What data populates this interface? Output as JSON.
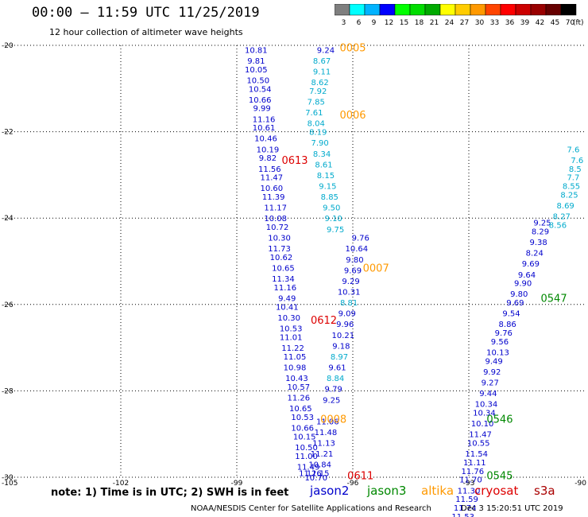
{
  "header": {
    "title": "00:00 – 11:59 UTC 11/25/2019",
    "subtitle": "12 hour collection of altimeter wave heights"
  },
  "colorbar": {
    "unit": "(ft)",
    "ticks": [
      "3",
      "6",
      "9",
      "12",
      "15",
      "18",
      "21",
      "24",
      "27",
      "30",
      "33",
      "36",
      "39",
      "42",
      "45",
      "70"
    ],
    "colors": [
      "#7f7f7f",
      "#00ffff",
      "#00b3ff",
      "#0000ff",
      "#00ff00",
      "#00dd00",
      "#00aa00",
      "#ffff00",
      "#ffcc00",
      "#ff9900",
      "#ff4400",
      "#ff0000",
      "#cc0000",
      "#990000",
      "#660000",
      "#000000"
    ]
  },
  "footer": {
    "note": "note: 1) Time is in UTC; 2) SWH is in feet",
    "satellites": [
      {
        "name": "jason2",
        "color": "#0000cc"
      },
      {
        "name": "jason3",
        "color": "#008800"
      },
      {
        "name": "altika",
        "color": "#ff9900"
      },
      {
        "name": "cryosat",
        "color": "#dd0000"
      },
      {
        "name": "s3a",
        "color": "#aa0000"
      }
    ],
    "credit": "NOAA/NESDIS Center for Satellite Applications and Research",
    "timestamp": "Dec 3 15:20:51 UTC 2019"
  },
  "chart_data": {
    "type": "scatter",
    "xlim": [
      -105,
      -90
    ],
    "ylim": [
      -30,
      -20
    ],
    "x_ticks": [
      "-105",
      "-102",
      "-99",
      "-96",
      "-93",
      "-90"
    ],
    "y_ticks": [
      "-20",
      "-22",
      "-24",
      "-26",
      "-28",
      "-30"
    ],
    "grid": true,
    "series": [
      {
        "name": "jason2",
        "color": "#0000cc",
        "points": [
          {
            "lon": -98.5,
            "lat": -20.1,
            "v": "10.81"
          },
          {
            "lon": -98.5,
            "lat": -20.35,
            "v": "9.81"
          },
          {
            "lon": -98.5,
            "lat": -20.55,
            "v": "10.05"
          },
          {
            "lon": -98.45,
            "lat": -20.8,
            "v": "10.50"
          },
          {
            "lon": -98.4,
            "lat": -21.0,
            "v": "10.54"
          },
          {
            "lon": -98.4,
            "lat": -21.25,
            "v": "10.66"
          },
          {
            "lon": -98.35,
            "lat": -21.45,
            "v": "9.99"
          },
          {
            "lon": -98.3,
            "lat": -21.7,
            "v": "11.16"
          },
          {
            "lon": -98.3,
            "lat": -21.9,
            "v": "10.61"
          },
          {
            "lon": -98.25,
            "lat": -22.15,
            "v": "10.46"
          },
          {
            "lon": -98.2,
            "lat": -22.4,
            "v": "10.19"
          },
          {
            "lon": -98.2,
            "lat": -22.6,
            "v": "9.82"
          },
          {
            "lon": -98.15,
            "lat": -22.85,
            "v": "11.56"
          },
          {
            "lon": -98.1,
            "lat": -23.05,
            "v": "11.47"
          },
          {
            "lon": -98.1,
            "lat": -23.3,
            "v": "10.60"
          },
          {
            "lon": -98.05,
            "lat": -23.5,
            "v": "11.39"
          },
          {
            "lon": -98.0,
            "lat": -23.75,
            "v": "11.17"
          },
          {
            "lon": -98.0,
            "lat": -24.0,
            "v": "10.08"
          },
          {
            "lon": -97.95,
            "lat": -24.2,
            "v": "10.72"
          },
          {
            "lon": -97.9,
            "lat": -24.45,
            "v": "10.30"
          },
          {
            "lon": -97.9,
            "lat": -24.7,
            "v": "11.73"
          },
          {
            "lon": -97.85,
            "lat": -24.9,
            "v": "10.62"
          },
          {
            "lon": -97.8,
            "lat": -25.15,
            "v": "10.65"
          },
          {
            "lon": -97.8,
            "lat": -25.4,
            "v": "11.34"
          },
          {
            "lon": -97.75,
            "lat": -25.6,
            "v": "11.16"
          },
          {
            "lon": -97.7,
            "lat": -25.85,
            "v": "9.49"
          },
          {
            "lon": -97.7,
            "lat": -26.05,
            "v": "10.41"
          },
          {
            "lon": -97.65,
            "lat": -26.3,
            "v": "10.30"
          },
          {
            "lon": -97.6,
            "lat": -26.55,
            "v": "10.53"
          },
          {
            "lon": -97.6,
            "lat": -26.75,
            "v": "11.01"
          },
          {
            "lon": -97.55,
            "lat": -27.0,
            "v": "11.22"
          },
          {
            "lon": -97.5,
            "lat": -27.2,
            "v": "11.05"
          },
          {
            "lon": -97.5,
            "lat": -27.45,
            "v": "10.98"
          },
          {
            "lon": -97.45,
            "lat": -27.7,
            "v": "10.43"
          },
          {
            "lon": -97.4,
            "lat": -27.9,
            "v": "10.57"
          },
          {
            "lon": -97.4,
            "lat": -28.15,
            "v": "11.26"
          },
          {
            "lon": -97.35,
            "lat": -28.4,
            "v": "10.65"
          },
          {
            "lon": -97.3,
            "lat": -28.6,
            "v": "10.53"
          },
          {
            "lon": -97.3,
            "lat": -28.85,
            "v": "10.66"
          },
          {
            "lon": -97.25,
            "lat": -29.05,
            "v": "10.15"
          },
          {
            "lon": -97.2,
            "lat": -29.3,
            "v": "10.50"
          },
          {
            "lon": -97.2,
            "lat": -29.5,
            "v": "11.00"
          },
          {
            "lon": -97.15,
            "lat": -29.75,
            "v": "11.49"
          },
          {
            "lon": -97.1,
            "lat": -29.9,
            "v": "11.26"
          },
          {
            "lon": -96.7,
            "lat": -20.1,
            "v": "9.24"
          },
          {
            "lon": -95.8,
            "lat": -24.45,
            "v": "9.76"
          },
          {
            "lon": -95.9,
            "lat": -24.7,
            "v": "10.64"
          },
          {
            "lon": -95.95,
            "lat": -24.95,
            "v": "9.80"
          },
          {
            "lon": -96.0,
            "lat": -25.2,
            "v": "9.69"
          },
          {
            "lon": -96.05,
            "lat": -25.45,
            "v": "9.29"
          },
          {
            "lon": -96.1,
            "lat": -25.7,
            "v": "10.31"
          },
          {
            "lon": -96.15,
            "lat": -26.2,
            "v": "9.09"
          },
          {
            "lon": -96.2,
            "lat": -26.45,
            "v": "9.96"
          },
          {
            "lon": -96.25,
            "lat": -26.7,
            "v": "10.21"
          },
          {
            "lon": -96.3,
            "lat": -26.95,
            "v": "9.18"
          },
          {
            "lon": -96.4,
            "lat": -27.45,
            "v": "9.61"
          },
          {
            "lon": -96.5,
            "lat": -27.95,
            "v": "9.79"
          },
          {
            "lon": -96.55,
            "lat": -28.2,
            "v": "9.25"
          },
          {
            "lon": -96.65,
            "lat": -28.7,
            "v": "11.06"
          },
          {
            "lon": -96.7,
            "lat": -28.95,
            "v": "11.48"
          },
          {
            "lon": -96.75,
            "lat": -29.2,
            "v": "11.13"
          },
          {
            "lon": -96.8,
            "lat": -29.45,
            "v": "11.21"
          },
          {
            "lon": -96.85,
            "lat": -29.7,
            "v": "10.84"
          },
          {
            "lon": -96.9,
            "lat": -29.9,
            "v": "11.15"
          },
          {
            "lon": -96.95,
            "lat": -30.0,
            "v": "10.70"
          }
        ]
      },
      {
        "name": "jason3",
        "color": "#0000cc",
        "points": [
          {
            "lon": -91.1,
            "lat": -24.1,
            "v": "9.25"
          },
          {
            "lon": -91.15,
            "lat": -24.3,
            "v": "8.29"
          },
          {
            "lon": -91.2,
            "lat": -24.55,
            "v": "9.38"
          },
          {
            "lon": -91.3,
            "lat": -24.8,
            "v": "8.24"
          },
          {
            "lon": -91.4,
            "lat": -25.05,
            "v": "9.69"
          },
          {
            "lon": -91.5,
            "lat": -25.3,
            "v": "9.64"
          },
          {
            "lon": -91.6,
            "lat": -25.5,
            "v": "9.90"
          },
          {
            "lon": -91.7,
            "lat": -25.75,
            "v": "9.80"
          },
          {
            "lon": -91.8,
            "lat": -25.95,
            "v": "9.69"
          },
          {
            "lon": -91.9,
            "lat": -26.2,
            "v": "9.54"
          },
          {
            "lon": -92.0,
            "lat": -26.45,
            "v": "8.86"
          },
          {
            "lon": -92.1,
            "lat": -26.65,
            "v": "9.76"
          },
          {
            "lon": -92.2,
            "lat": -26.85,
            "v": "9.56"
          },
          {
            "lon": -92.25,
            "lat": -27.1,
            "v": "10.13"
          },
          {
            "lon": -92.35,
            "lat": -27.3,
            "v": "9.49"
          },
          {
            "lon": -92.4,
            "lat": -27.55,
            "v": "9.92"
          },
          {
            "lon": -92.45,
            "lat": -27.8,
            "v": "9.27"
          },
          {
            "lon": -92.5,
            "lat": -28.05,
            "v": "9.44"
          },
          {
            "lon": -92.55,
            "lat": -28.3,
            "v": "10.34"
          },
          {
            "lon": -92.6,
            "lat": -28.5,
            "v": "10.34"
          },
          {
            "lon": -92.65,
            "lat": -28.75,
            "v": "10.10"
          },
          {
            "lon": -92.7,
            "lat": -29.0,
            "v": "11.47"
          },
          {
            "lon": -92.75,
            "lat": -29.2,
            "v": "10.55"
          },
          {
            "lon": -92.8,
            "lat": -29.45,
            "v": "11.54"
          },
          {
            "lon": -92.85,
            "lat": -29.65,
            "v": "11.11"
          },
          {
            "lon": -92.9,
            "lat": -29.85,
            "v": "11.76"
          },
          {
            "lon": -92.95,
            "lat": -30.05,
            "v": "11.70"
          },
          {
            "lon": -93.0,
            "lat": -30.3,
            "v": "11.30"
          },
          {
            "lon": -93.05,
            "lat": -30.5,
            "v": "11.59"
          },
          {
            "lon": -93.1,
            "lat": -30.7,
            "v": "11.74"
          },
          {
            "lon": -93.15,
            "lat": -30.9,
            "v": "11.53"
          }
        ]
      },
      {
        "name": "altika",
        "color": "#00aacc",
        "points": [
          {
            "lon": -96.8,
            "lat": -20.35,
            "v": "8.67"
          },
          {
            "lon": -96.8,
            "lat": -20.6,
            "v": "9.11"
          },
          {
            "lon": -96.85,
            "lat": -20.85,
            "v": "8.62"
          },
          {
            "lon": -96.9,
            "lat": -21.05,
            "v": "7.92"
          },
          {
            "lon": -96.95,
            "lat": -21.3,
            "v": "7.85"
          },
          {
            "lon": -97.0,
            "lat": -21.55,
            "v": "7.61"
          },
          {
            "lon": -96.95,
            "lat": -21.8,
            "v": "8.04"
          },
          {
            "lon": -96.9,
            "lat": -22.0,
            "v": "8.19"
          },
          {
            "lon": -96.85,
            "lat": -22.25,
            "v": "7.90"
          },
          {
            "lon": -96.8,
            "lat": -22.5,
            "v": "8.34"
          },
          {
            "lon": -96.75,
            "lat": -22.75,
            "v": "8.61"
          },
          {
            "lon": -96.7,
            "lat": -23.0,
            "v": "8.15"
          },
          {
            "lon": -96.65,
            "lat": -23.25,
            "v": "9.15"
          },
          {
            "lon": -96.6,
            "lat": -23.5,
            "v": "8.85"
          },
          {
            "lon": -96.55,
            "lat": -23.75,
            "v": "9.50"
          },
          {
            "lon": -96.5,
            "lat": -24.0,
            "v": "9.10"
          },
          {
            "lon": -96.45,
            "lat": -24.25,
            "v": "9.75"
          },
          {
            "lon": -96.1,
            "lat": -25.95,
            "v": "8.81"
          },
          {
            "lon": -96.35,
            "lat": -27.2,
            "v": "8.97"
          },
          {
            "lon": -96.45,
            "lat": -27.7,
            "v": "8.84"
          },
          {
            "lon": -90.2,
            "lat": -22.65,
            "v": "7.6"
          },
          {
            "lon": -90.3,
            "lat": -22.4,
            "v": "7.6"
          },
          {
            "lon": -90.25,
            "lat": -22.85,
            "v": "8.5"
          },
          {
            "lon": -90.3,
            "lat": -23.05,
            "v": "7.7"
          },
          {
            "lon": -90.35,
            "lat": -23.25,
            "v": "8.55"
          },
          {
            "lon": -90.4,
            "lat": -23.45,
            "v": "8.25"
          },
          {
            "lon": -90.5,
            "lat": -23.7,
            "v": "8.69"
          },
          {
            "lon": -90.6,
            "lat": -23.95,
            "v": "8.27"
          },
          {
            "lon": -90.7,
            "lat": -24.15,
            "v": "8.56"
          }
        ]
      }
    ],
    "time_labels": [
      {
        "text": "0005",
        "lon": -96.0,
        "lat": -20.05,
        "color": "#ff9900"
      },
      {
        "text": "0006",
        "lon": -96.0,
        "lat": -21.6,
        "color": "#ff9900"
      },
      {
        "text": "0613",
        "lon": -97.5,
        "lat": -22.65,
        "color": "#dd0000"
      },
      {
        "text": "0007",
        "lon": -95.4,
        "lat": -25.15,
        "color": "#ff9900"
      },
      {
        "text": "0547",
        "lon": -90.8,
        "lat": -25.85,
        "color": "#008800"
      },
      {
        "text": "0612",
        "lon": -96.75,
        "lat": -26.35,
        "color": "#dd0000"
      },
      {
        "text": "0008",
        "lon": -96.5,
        "lat": -28.65,
        "color": "#ff9900"
      },
      {
        "text": "0546",
        "lon": -92.2,
        "lat": -28.65,
        "color": "#008800"
      },
      {
        "text": "0611",
        "lon": -95.8,
        "lat": -29.95,
        "color": "#dd0000"
      },
      {
        "text": "0545",
        "lon": -92.2,
        "lat": -29.95,
        "color": "#008800"
      }
    ]
  }
}
